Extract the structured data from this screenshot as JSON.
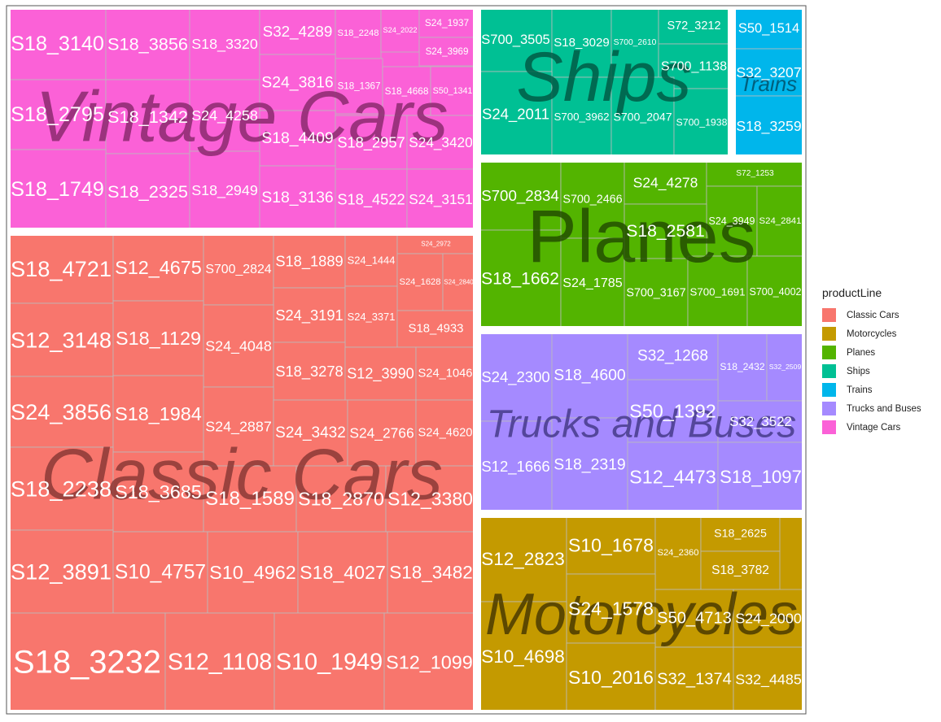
{
  "chart_data": {
    "type": "treemap",
    "legend": {
      "title": "productLine",
      "position": "right",
      "entries": [
        {
          "name": "Classic Cars",
          "color": "#F8766D"
        },
        {
          "name": "Motorcycles",
          "color": "#C49A00"
        },
        {
          "name": "Planes",
          "color": "#53B400"
        },
        {
          "name": "Ships",
          "color": "#00C094"
        },
        {
          "name": "Trains",
          "color": "#00B6EB"
        },
        {
          "name": "Trucks and Buses",
          "color": "#A58AFF"
        },
        {
          "name": "Vintage Cars",
          "color": "#FB61D7"
        }
      ]
    },
    "groups": [
      {
        "name": "Vintage Cars",
        "color": "#FB61D7",
        "label_color": "#8B2A6E",
        "items": [
          "S18_3140",
          "S18_3856",
          "S18_3320",
          "S32_4289",
          "S18_2248",
          "S24_2022",
          "S24_1937",
          "S24_3969",
          "S18_2795",
          "S18_1342",
          "S24_4258",
          "S24_3816",
          "S18_1367",
          "S18_4668",
          "S50_1341",
          "S18_4409",
          "S18_2957",
          "S24_3420",
          "S18_1749",
          "S18_2325",
          "S18_2949",
          "S18_3136",
          "S18_4522",
          "S24_3151"
        ]
      },
      {
        "name": "Classic Cars",
        "color": "#F8766D",
        "label_color": "#8B3A36",
        "items": [
          "S18_4721",
          "S12_4675",
          "S700_2824",
          "S18_1889",
          "S24_1444",
          "S24_2972",
          "S24_1628",
          "S24_2840",
          "S24_3191",
          "S24_3371",
          "S18_4933",
          "S12_3148",
          "S18_1129",
          "S24_4048",
          "S18_3278",
          "S12_3990",
          "S24_1046",
          "S24_3856",
          "S18_1984",
          "S24_2887",
          "S24_3432",
          "S24_2766",
          "S24_4620",
          "S18_2238",
          "S18_3685",
          "S18_1589",
          "S18_2870",
          "S12_3380",
          "S12_3891",
          "S10_4757",
          "S10_4962",
          "S18_4027",
          "S18_3482",
          "S18_3232",
          "S12_1108",
          "S10_1949",
          "S12_1099"
        ]
      },
      {
        "name": "Ships",
        "color": "#00C094",
        "label_color": "#005A45",
        "items": [
          "S700_3505",
          "S18_3029",
          "S700_2610",
          "S72_3212",
          "S700_1138",
          "S24_2011",
          "S700_3962",
          "S700_2047",
          "S700_1938"
        ]
      },
      {
        "name": "Trains",
        "color": "#00B6EB",
        "label_color": "#00506A",
        "items": [
          "S50_1514",
          "S32_3207",
          "S18_3259"
        ]
      },
      {
        "name": "Planes",
        "color": "#53B400",
        "label_color": "#234D00",
        "items": [
          "S700_2834",
          "S700_2466",
          "S24_4278",
          "S72_1253",
          "S24_3949",
          "S24_2841",
          "S18_2581",
          "S18_1662",
          "S24_1785",
          "S700_3167",
          "S700_1691",
          "S700_4002"
        ]
      },
      {
        "name": "Trucks and Buses",
        "color": "#A58AFF",
        "label_color": "#45398A",
        "items": [
          "S24_2300",
          "S18_4600",
          "S32_1268",
          "S18_2432",
          "S32_2509",
          "S50_1392",
          "S32_3522",
          "S12_1666",
          "S18_2319",
          "S12_4473",
          "S18_1097"
        ]
      },
      {
        "name": "Motorcycles",
        "color": "#C49A00",
        "label_color": "#4A3A00",
        "items": [
          "S12_2823",
          "S10_1678",
          "S24_2360",
          "S18_2625",
          "S18_3782",
          "S24_1578",
          "S50_4713",
          "S24_2000",
          "S10_4698",
          "S10_2016",
          "S32_1374",
          "S32_4485"
        ]
      }
    ]
  }
}
